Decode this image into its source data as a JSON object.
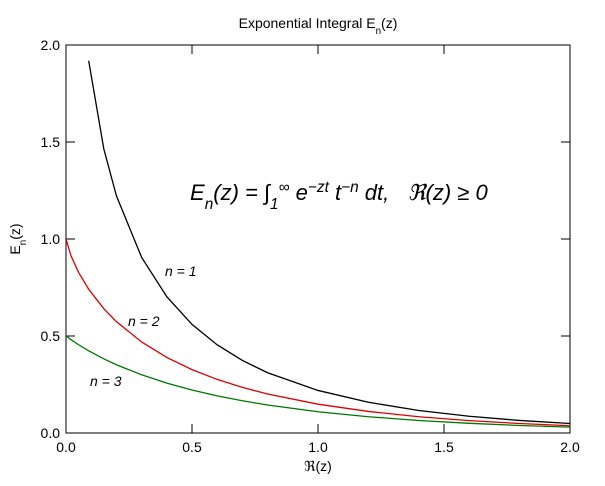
{
  "chart_data": {
    "type": "line",
    "title": [
      {
        "text": "Exponential Integral ",
        "shift": "baseline"
      },
      {
        "text": "E",
        "shift": "baseline"
      },
      {
        "text": "n",
        "shift": "sub"
      },
      {
        "text": "(z)",
        "shift": "baseline"
      }
    ],
    "y_label": [
      {
        "text": "E",
        "shift": "baseline"
      },
      {
        "text": "n",
        "shift": "sub"
      },
      {
        "text": "(z)",
        "shift": "baseline"
      }
    ],
    "x_label": "ℜ(z)",
    "annotation": [
      {
        "text": "E",
        "shift": "baseline"
      },
      {
        "text": "n",
        "shift": "sub"
      },
      {
        "text": "(z) = ∫",
        "shift": "baseline"
      },
      {
        "text": "1",
        "shift": "sub"
      },
      {
        "text": "∞",
        "shift": "super"
      },
      {
        "text": " e",
        "shift": "baseline"
      },
      {
        "text": "−zt",
        "shift": "super"
      },
      {
        "text": " t",
        "shift": "baseline"
      },
      {
        "text": "−n",
        "shift": "super"
      },
      {
        "text": " dt,   ℜ(z) ≥ 0",
        "shift": "baseline"
      }
    ],
    "x": [
      0,
      0.02,
      0.05,
      0.09,
      0.15,
      0.2,
      0.3,
      0.4,
      0.5,
      0.6,
      0.7,
      0.8,
      1.0,
      1.2,
      1.4,
      1.6,
      1.8,
      2.0
    ],
    "series": [
      {
        "name": "n = 1",
        "color": "#000000",
        "values": [
          null,
          null,
          null,
          1.919,
          1.4645,
          1.2227,
          0.9057,
          0.7024,
          0.5598,
          0.4544,
          0.3738,
          0.3106,
          0.2194,
          0.1584,
          0.1162,
          0.0863,
          0.0647,
          0.0489
        ]
      },
      {
        "name": "n = 2",
        "color": "#dd0000",
        "values": [
          1.0,
          0.9131,
          0.8278,
          0.7412,
          0.641,
          0.5742,
          0.4691,
          0.3894,
          0.3266,
          0.2762,
          0.2349,
          0.2009,
          0.1485,
          0.1111,
          0.0839,
          0.0638,
          0.0489,
          0.0375
        ]
      },
      {
        "name": "n = 3",
        "color": "#007700",
        "values": [
          0.5,
          0.481,
          0.4549,
          0.4236,
          0.3823,
          0.3519,
          0.3,
          0.2573,
          0.2216,
          0.1916,
          0.1661,
          0.1443,
          0.1097,
          0.0839,
          0.0646,
          0.0499,
          0.0387,
          0.0302
        ]
      }
    ],
    "xlim": [
      0,
      2
    ],
    "ylim": [
      0,
      2
    ],
    "xticks": [
      {
        "value": 0,
        "label": "0.0"
      },
      {
        "value": 0.5,
        "label": "0.5"
      },
      {
        "value": 1,
        "label": "1.0"
      },
      {
        "value": 1.5,
        "label": "1.5"
      },
      {
        "value": 2,
        "label": "2.0"
      }
    ],
    "yticks": [
      {
        "value": 0,
        "label": "0.0"
      },
      {
        "value": 0.5,
        "label": "0.5"
      },
      {
        "value": 1,
        "label": "1.0"
      },
      {
        "value": 1.5,
        "label": "1.5"
      },
      {
        "value": 2,
        "label": "2.0"
      }
    ],
    "grid": false
  }
}
